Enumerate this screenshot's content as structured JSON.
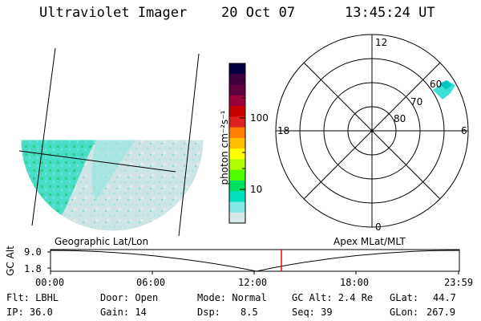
{
  "header": {
    "instrument": "Ultraviolet Imager",
    "date": "20 Oct 07",
    "time": "13:45:24 UT"
  },
  "colorbar": {
    "unit_label": "photon cm⁻²s⁻¹",
    "ticks": [
      "100",
      "10"
    ],
    "colors": [
      "#000040",
      "#400040",
      "#600040",
      "#9b003c",
      "#c80000",
      "#e02020",
      "#ff8000",
      "#ffbf00",
      "#ffff00",
      "#b0ff00",
      "#50ff00",
      "#00e060",
      "#00e0c0",
      "#80e8e8",
      "#d8e8e8"
    ]
  },
  "polar": {
    "mlt_labels": {
      "top": "12",
      "left": "18",
      "right": "6",
      "bottom": "0"
    },
    "lat_labels": [
      "60",
      "70",
      "80"
    ]
  },
  "map_labels": {
    "left": "Geographic Lat/Lon",
    "right": "Apex MLat/MLT"
  },
  "altitude_plot": {
    "ylabel": "GC Alt",
    "yticks": [
      "9.0",
      "1.8"
    ],
    "xticks": [
      "00:00",
      "06:00",
      "12:00",
      "18:00",
      "23:59"
    ],
    "marker_color": "#ff0000"
  },
  "status": {
    "flt": "Flt: LBHL",
    "ip": "IP: 36.0",
    "door": "Door: Open",
    "gain": "Gain: 14",
    "mode": "Mode: Normal",
    "dsp_label": "Dsp:",
    "dsp_value": "8.5",
    "gcalt": "GC Alt: 2.4 Re",
    "seq": "Seq: 39",
    "glat_label": "GLat:",
    "glat_value": "44.7",
    "glon_label": "GLon:",
    "glon_value": "267.9"
  }
}
